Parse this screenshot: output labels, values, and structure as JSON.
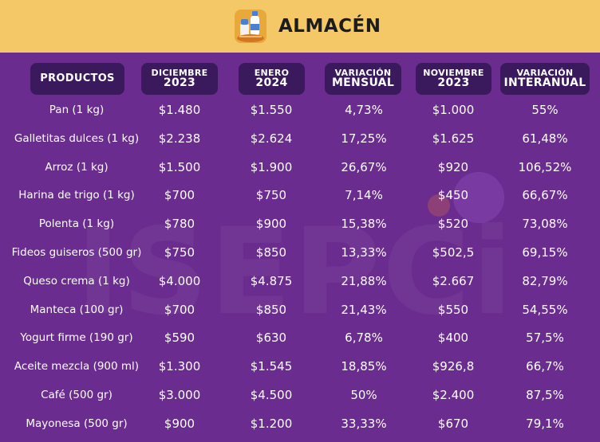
{
  "header": {
    "title": "ALMACÉN",
    "icon": "grocery-icon"
  },
  "watermark": "ISEPCi",
  "columns": [
    {
      "key": "producto",
      "line1": "PRODUCTOS",
      "line2": ""
    },
    {
      "key": "dic",
      "line1": "DICIEMBRE",
      "line2": "2023"
    },
    {
      "key": "ene",
      "line1": "ENERO",
      "line2": "2024"
    },
    {
      "key": "var_mensual",
      "line1": "VARIACIÓN",
      "line2": "MENSUAL"
    },
    {
      "key": "nov",
      "line1": "NOVIEMBRE",
      "line2": "2023"
    },
    {
      "key": "var_interanual",
      "line1": "VARIACIÓN",
      "line2": "INTERANUAL"
    }
  ],
  "rows": [
    [
      "Pan (1 kg)",
      "$1.480",
      "$1.550",
      "4,73%",
      "$1.000",
      "55%"
    ],
    [
      "Galletitas dulces (1 kg)",
      "$2.238",
      "$2.624",
      "17,25%",
      "$1.625",
      "61,48%"
    ],
    [
      "Arroz (1 kg)",
      "$1.500",
      "$1.900",
      "26,67%",
      "$920",
      "106,52%"
    ],
    [
      "Harina de trigo (1 kg)",
      "$700",
      "$750",
      "7,14%",
      "$450",
      "66,67%"
    ],
    [
      "Polenta (1 kg)",
      "$780",
      "$900",
      "15,38%",
      "$520",
      "73,08%"
    ],
    [
      "Fideos guiseros (500 gr)",
      "$750",
      "$850",
      "13,33%",
      "$502,5",
      "69,15%"
    ],
    [
      "Queso crema (1 kg)",
      "$4.000",
      "$4.875",
      "21,88%",
      "$2.667",
      "82,79%"
    ],
    [
      "Manteca (100 gr)",
      "$700",
      "$850",
      "21,43%",
      "$550",
      "54,55%"
    ],
    [
      "Yogurt firme (190 gr)",
      "$590",
      "$630",
      "6,78%",
      "$400",
      "57,5%"
    ],
    [
      "Aceite mezcla (900 ml)",
      "$1.300",
      "$1.545",
      "18,85%",
      "$926,8",
      "66,7%"
    ],
    [
      "Café (500 gr)",
      "$3.000",
      "$4.500",
      "50%",
      "$2.400",
      "87,5%"
    ],
    [
      "Mayonesa (500 gr)",
      "$900",
      "$1.200",
      "33,33%",
      "$670",
      "79,1%"
    ]
  ],
  "colors": {
    "background": "#6a2c8e",
    "header_bar": "#f4c867",
    "column_header": "#3a1a5c",
    "text": "#ffffff"
  }
}
